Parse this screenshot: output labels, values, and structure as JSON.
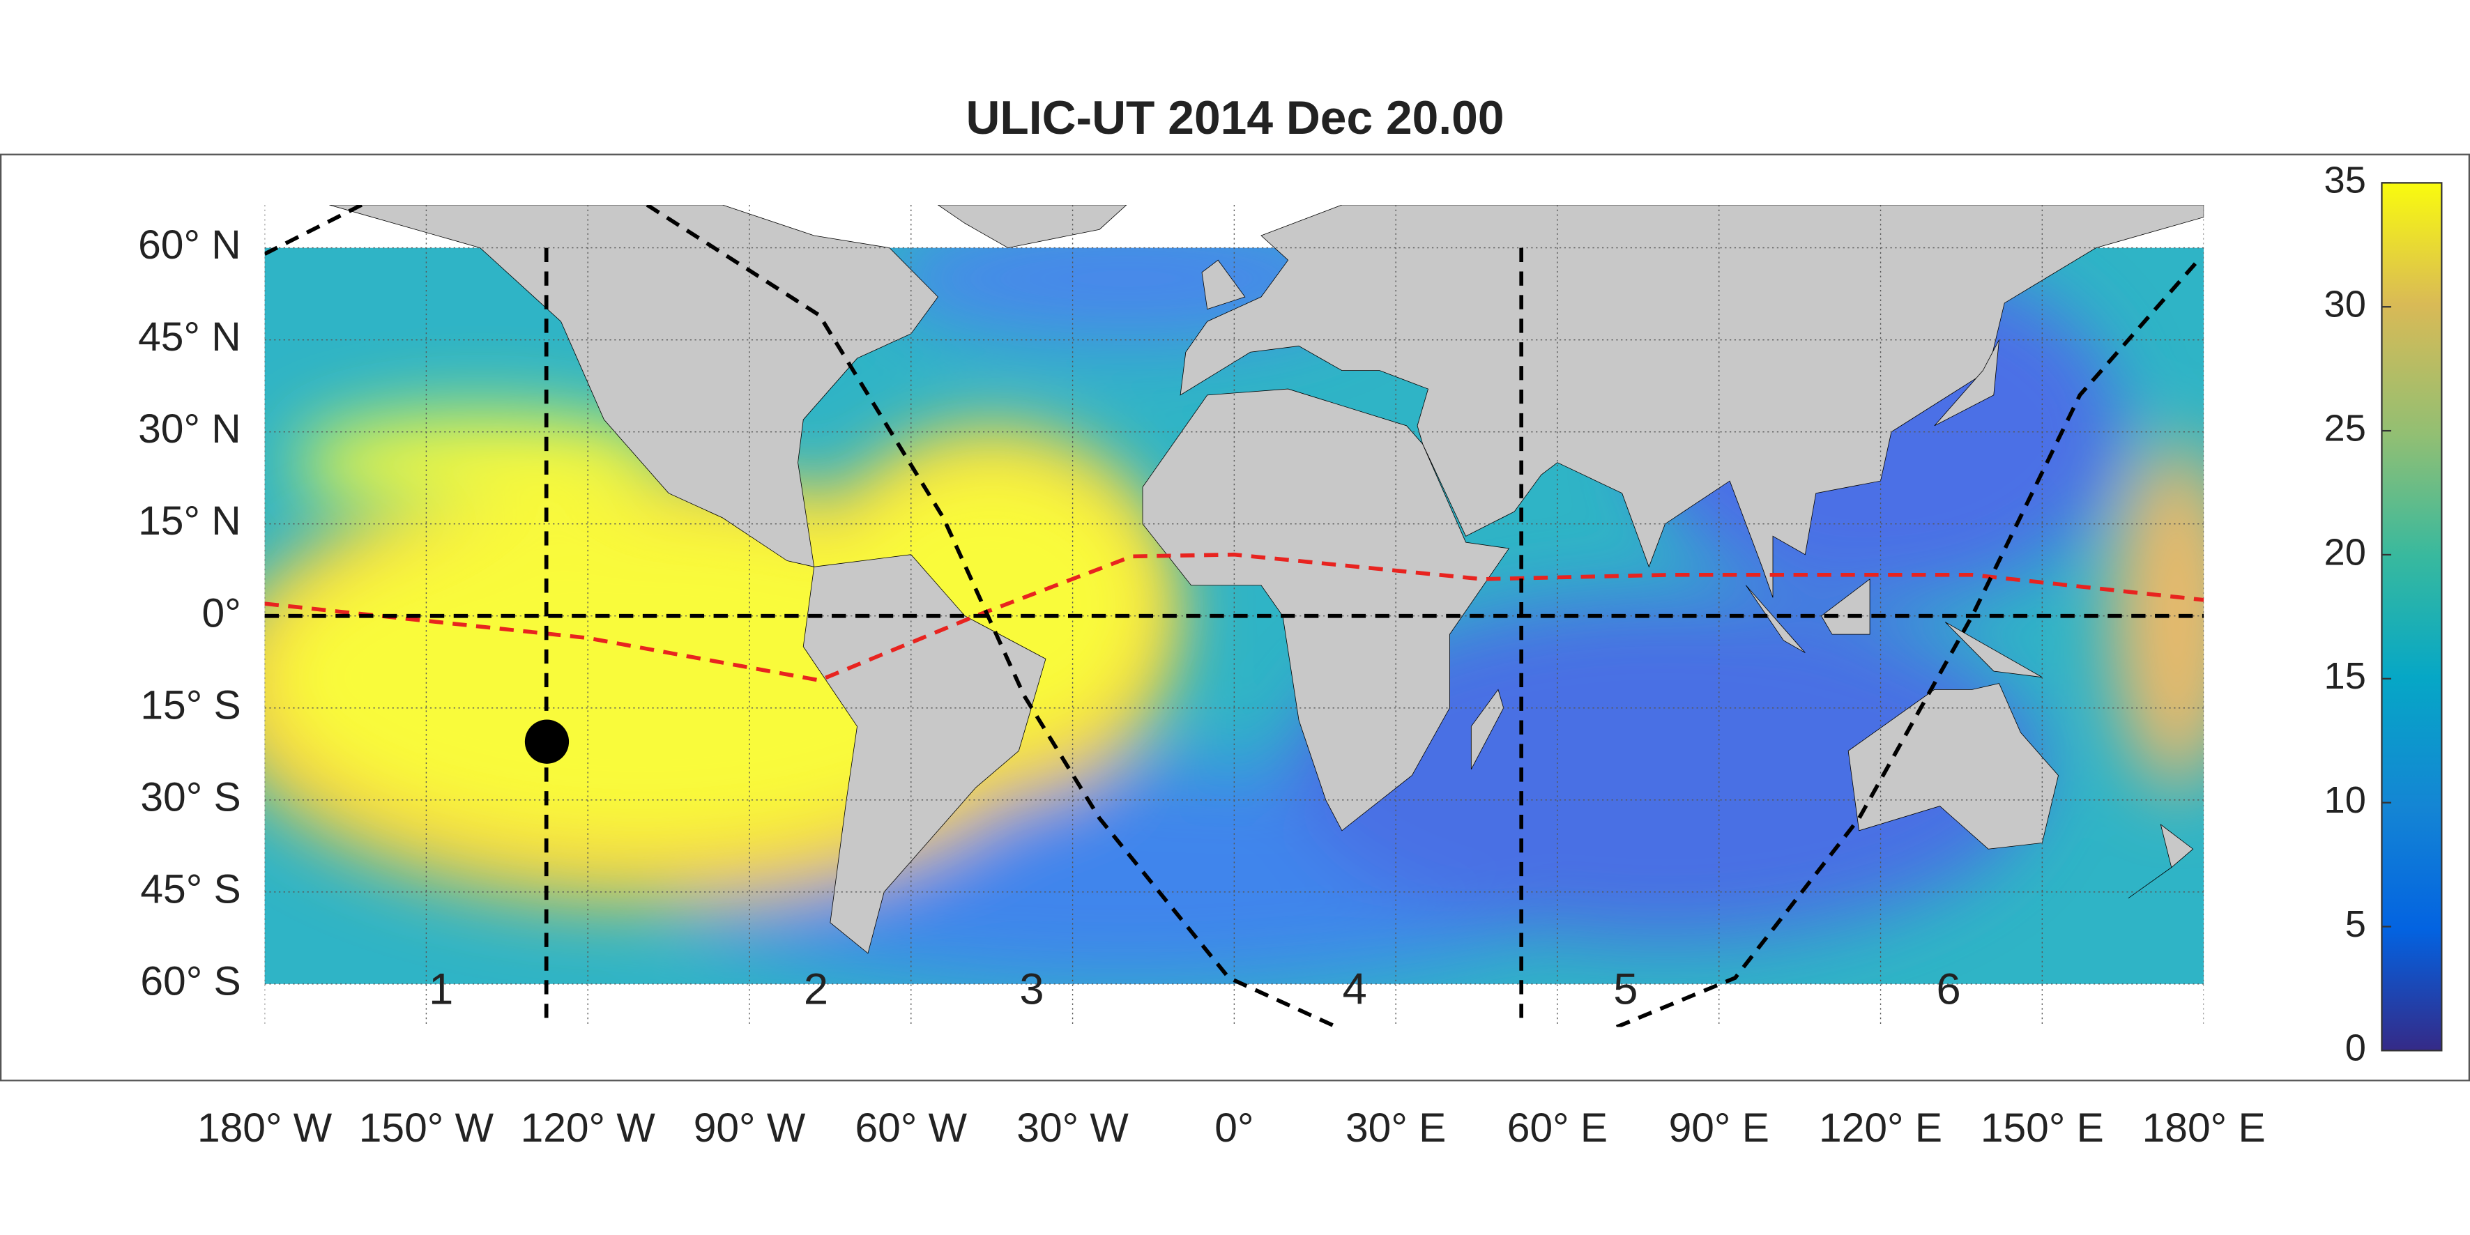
{
  "title": "ULIC-UT 2014 Dec 20.00",
  "map": {
    "xlim": [
      -180,
      180
    ],
    "ylim": [
      -67,
      67
    ],
    "xticks": [
      {
        "value": -180,
        "label": "180° W"
      },
      {
        "value": -150,
        "label": "150° W"
      },
      {
        "value": -120,
        "label": "120° W"
      },
      {
        "value": -90,
        "label": "90° W"
      },
      {
        "value": -60,
        "label": "60° W"
      },
      {
        "value": -30,
        "label": "30° W"
      },
      {
        "value": 0,
        "label": "0°"
      },
      {
        "value": 30,
        "label": "30° E"
      },
      {
        "value": 60,
        "label": "60° E"
      },
      {
        "value": 90,
        "label": "90° E"
      },
      {
        "value": 120,
        "label": "120° E"
      },
      {
        "value": 150,
        "label": "150° E"
      },
      {
        "value": 180,
        "label": "180° E"
      }
    ],
    "yticks": [
      {
        "value": 60,
        "label": "60° N"
      },
      {
        "value": 45,
        "label": "45° N"
      },
      {
        "value": 30,
        "label": "30° N"
      },
      {
        "value": 15,
        "label": "15° N"
      },
      {
        "value": 0,
        "label": "0°"
      },
      {
        "value": -15,
        "label": "15° S"
      },
      {
        "value": -30,
        "label": "30° S"
      },
      {
        "value": -45,
        "label": "45° S"
      },
      {
        "value": -60,
        "label": "60° S"
      }
    ],
    "grid": true,
    "marker": {
      "lon": -127.6,
      "lat": -20.5,
      "color": "#000000"
    },
    "lines": [
      {
        "color": "#e8231f",
        "lon": [
          -180,
          -120,
          -77,
          -48,
          -19,
          0,
          46,
          81,
          137,
          180
        ],
        "lat": [
          2,
          -3.6,
          -10.5,
          0,
          9.7,
          10,
          6,
          6.7,
          6.7,
          2.6
        ]
      },
      {
        "color": "#000000",
        "lon": [
          -180,
          -162
        ],
        "lat": [
          59,
          67
        ]
      },
      {
        "color": "#000000",
        "lon": [
          -109,
          -77,
          -54,
          -39,
          -25,
          -1,
          19
        ],
        "lat": [
          67,
          49,
          16,
          -13,
          -33,
          -59,
          -67
        ]
      },
      {
        "color": "#000000",
        "lon": [
          71,
          93,
          116,
          137,
          157,
          179
        ],
        "lat": [
          -67,
          -59,
          -33,
          0,
          36,
          58
        ]
      },
      {
        "color": "#000000",
        "lon": [
          -127.7,
          -127.7
        ],
        "lat": [
          60,
          -67
        ]
      },
      {
        "color": "#000000",
        "lon": [
          53.3,
          53.3
        ],
        "lat": [
          60,
          -67
        ]
      },
      {
        "color": "#000000",
        "lon": [
          -180,
          180
        ],
        "lat": [
          0,
          0
        ]
      }
    ]
  },
  "regions": [
    "1",
    "2",
    "3",
    "4",
    "5",
    "6"
  ],
  "colorbar": {
    "lim": [
      0,
      35
    ],
    "ticks": [
      0,
      5,
      10,
      15,
      20,
      25,
      30,
      35
    ]
  }
}
